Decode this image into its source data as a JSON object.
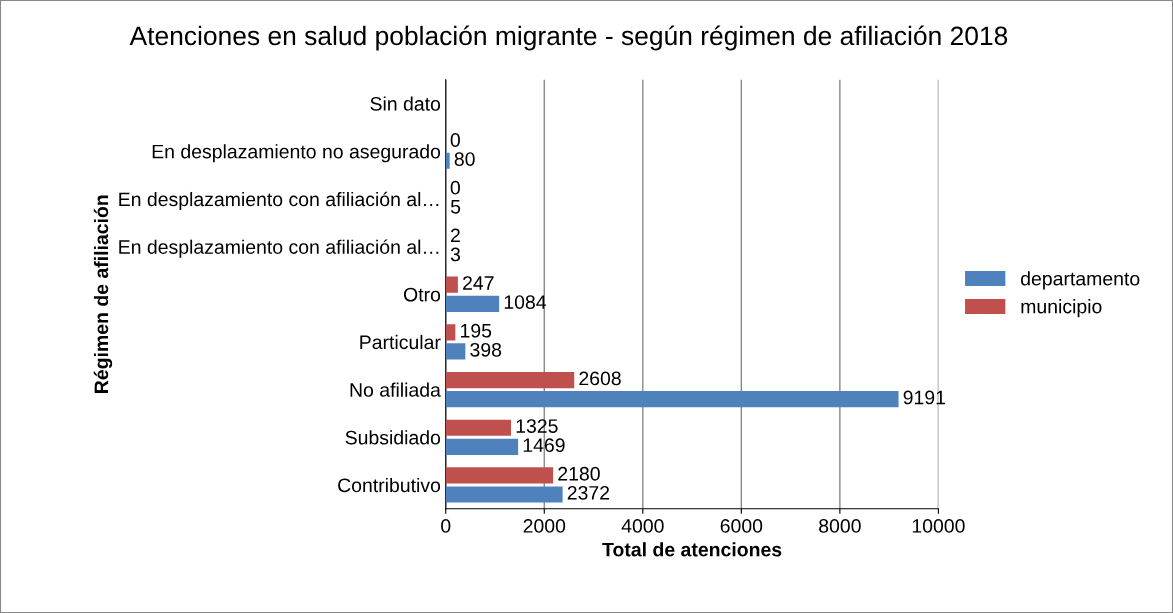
{
  "chart_data": {
    "type": "bar",
    "orientation": "horizontal",
    "title": "Atenciones en salud población migrante - según régimen de afiliación 2018",
    "xlabel": "Total de atenciones",
    "ylabel": "Régimen de afiliación",
    "categories": [
      "Sin dato",
      "En desplazamiento no asegurado",
      "En desplazamiento con afiliación al…",
      "En desplazamiento con afiliación al…",
      "Otro",
      "Particular",
      "No afiliada",
      "Subsidiado",
      "Contributivo"
    ],
    "series": [
      {
        "name": "municipio",
        "color": "#c0504d",
        "values": [
          null,
          0,
          0,
          2,
          247,
          195,
          2608,
          1325,
          2180
        ]
      },
      {
        "name": "departamento",
        "color": "#4f81bd",
        "values": [
          null,
          80,
          5,
          3,
          1084,
          398,
          9191,
          1469,
          2372
        ]
      }
    ],
    "xlim": [
      0,
      10000
    ],
    "xticks": [
      0,
      2000,
      4000,
      6000,
      8000,
      10000
    ],
    "grid": "x",
    "legend": "right",
    "data_labels": true
  }
}
